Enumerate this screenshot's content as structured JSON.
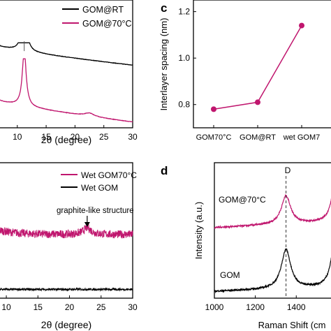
{
  "chart_data": [
    {
      "panel_label": "",
      "type": "line",
      "title": "",
      "xlabel": "2θ (degree)",
      "ylabel": "",
      "xlim": [
        7,
        30
      ],
      "ylim": [
        0,
        1
      ],
      "x_ticks": [
        10,
        15,
        20,
        25,
        30
      ],
      "legend_position": "top-right",
      "series": [
        {
          "name": "GOM@RT",
          "color": "#000000",
          "peaks": [
            {
              "x": 11.2,
              "height": 0.93,
              "width": 0.8
            }
          ],
          "baseline_start": 0.42,
          "baseline_end": 0.12,
          "offset": 0.55
        },
        {
          "name": "GOM@70°C",
          "color": "#c0166e",
          "peaks": [
            {
              "x": 11.2,
              "height": 0.88,
              "width": 0.8
            },
            {
              "x": 22.5,
              "height": 0.05,
              "width": 2.0
            }
          ],
          "baseline_start": 0.37,
          "baseline_end": 0.03,
          "offset": 0.0
        }
      ]
    },
    {
      "panel_label": "c",
      "type": "line",
      "title": "",
      "xlabel": "",
      "ylabel": "Interlayer spacing (nm)",
      "categories": [
        "GOM70°C",
        "GOM@RT",
        "wet GOM7"
      ],
      "values": [
        0.78,
        0.81,
        1.14
      ],
      "ylim": [
        0.7,
        1.25
      ],
      "y_ticks": [
        0.8,
        1.0,
        1.2
      ],
      "color": "#c0166e"
    },
    {
      "panel_label": "",
      "type": "line",
      "title": "",
      "xlabel": "2θ (degree)",
      "ylabel": "",
      "xlim": [
        9,
        30
      ],
      "ylim": [
        0,
        1
      ],
      "x_ticks": [
        10,
        15,
        20,
        25,
        30
      ],
      "legend_position": "top-right",
      "annotation": {
        "text": "graphite-like structure",
        "x": 22.8
      },
      "series": [
        {
          "name": "Wet GOM70°C",
          "color": "#c0166e",
          "level": 0.47,
          "noise": 0.03,
          "peaks": [
            {
              "x": 22.8,
              "height": 0.05,
              "width": 1.5
            }
          ]
        },
        {
          "name": "Wet GOM",
          "color": "#000000",
          "level": 0.065,
          "noise": 0.008,
          "peaks": []
        }
      ]
    },
    {
      "panel_label": "d",
      "type": "line",
      "title": "",
      "xlabel": "Raman Shift (cm",
      "ylabel": "Intensity (a.u.)",
      "xlim": [
        1000,
        1580
      ],
      "ylim": [
        0,
        1
      ],
      "x_ticks": [
        1000,
        1200,
        1400
      ],
      "reference_line": {
        "x": 1350,
        "label": "D"
      },
      "series": [
        {
          "name": "GOM@70°C",
          "color": "#c0166e",
          "base": 0.52,
          "slope": 0.04,
          "peaks": [
            {
              "x": 1350,
              "height": 0.21,
              "width": 55
            },
            {
              "x": 1590,
              "height": 0.28,
              "width": 45
            }
          ]
        },
        {
          "name": "GOM",
          "color": "#000000",
          "base": 0.05,
          "slope": 0.03,
          "peaks": [
            {
              "x": 1350,
              "height": 0.29,
              "width": 55
            },
            {
              "x": 1590,
              "height": 0.36,
              "width": 45
            }
          ]
        }
      ]
    }
  ]
}
